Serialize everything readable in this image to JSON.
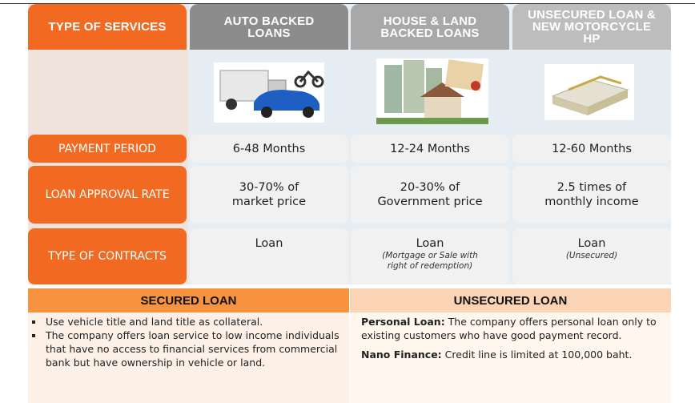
{
  "header": [
    "TYPE OF SERVICES",
    "AUTO BACKED LOANS",
    "HOUSE & LAND BACKED LOANS",
    "UNSECURED LOAN & NEW MOTORCYCLE HP"
  ],
  "rows": [
    {
      "label": "PAYMENT PERIOD",
      "cells": [
        {
          "lines": [
            "6-48 Months"
          ]
        },
        {
          "lines": [
            "12-24 Months"
          ]
        },
        {
          "lines": [
            "12-60 Months"
          ]
        }
      ]
    },
    {
      "label": "LOAN APPROVAL RATE",
      "cells": [
        {
          "lines": [
            "30-70% of",
            "market price"
          ]
        },
        {
          "lines": [
            "20-30% of",
            "Government price"
          ]
        },
        {
          "lines": [
            "2.5 times of",
            "monthly income"
          ]
        }
      ]
    },
    {
      "label": "TYPE OF CONTRACTS",
      "cells": [
        {
          "lines": [
            "Loan"
          ]
        },
        {
          "lines": [
            "Loan"
          ],
          "note": [
            "(Mortgage or Sale with",
            "right of redemption)"
          ]
        },
        {
          "lines": [
            "Loan"
          ],
          "note": [
            "(Unsecured)"
          ]
        }
      ]
    }
  ],
  "secured": {
    "title": "SECURED LOAN",
    "bullets": [
      "Use vehicle title and land title as collateral.",
      "The company offers loan service to low income individuals that have no access to financial services from commercial bank but have ownership in vehicle or land."
    ]
  },
  "unsecured": {
    "title": "UNSECURED LOAN",
    "items": [
      {
        "term": "Personal Loan:",
        "text": "The company offers personal loan only to existing customers who have good payment record."
      },
      {
        "term": "Nano Finance:",
        "text": "Credit line is limited at 100,000 baht."
      }
    ]
  }
}
